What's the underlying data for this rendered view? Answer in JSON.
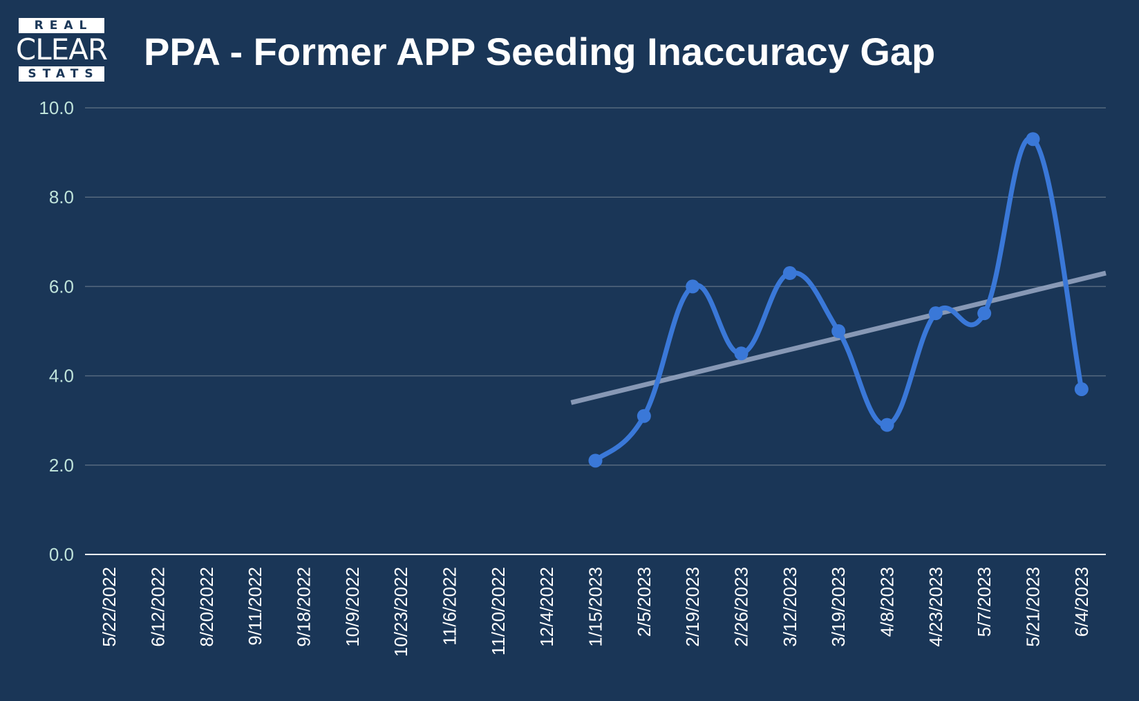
{
  "logo": {
    "top": "REAL",
    "middle": "CLEAR",
    "bottom": "STATS"
  },
  "colors": {
    "background": "#1a3657",
    "series": "#3a78d8",
    "trendline": "#9aaac6",
    "grid": "#55697f",
    "ytick": "#bfe3da"
  },
  "chart_data": {
    "type": "line",
    "title": "PPA - Former APP Seeding Inaccuracy Gap",
    "xlabel": "",
    "ylabel": "",
    "ylim": [
      0,
      10
    ],
    "yticks": [
      "0.0",
      "2.0",
      "4.0",
      "6.0",
      "8.0",
      "10.0"
    ],
    "grid": true,
    "smooth": true,
    "categories": [
      "5/22/2022",
      "6/12/2022",
      "8/20/2022",
      "9/11/2022",
      "9/18/2022",
      "10/9/2022",
      "10/23/2022",
      "11/6/2022",
      "11/20/2022",
      "12/4/2022",
      "1/15/2023",
      "2/5/2023",
      "2/19/2023",
      "2/26/2023",
      "3/12/2023",
      "3/19/2023",
      "4/8/2023",
      "4/23/2023",
      "5/7/2023",
      "5/21/2023",
      "6/4/2023"
    ],
    "series": [
      {
        "values": [
          null,
          null,
          null,
          null,
          null,
          null,
          null,
          null,
          null,
          null,
          2.1,
          3.1,
          6.0,
          4.5,
          6.3,
          5.0,
          2.9,
          5.4,
          5.4,
          9.3,
          3.7
        ]
      }
    ],
    "trendline": {
      "type": "linear",
      "start": 3.4,
      "end": 6.3
    }
  }
}
